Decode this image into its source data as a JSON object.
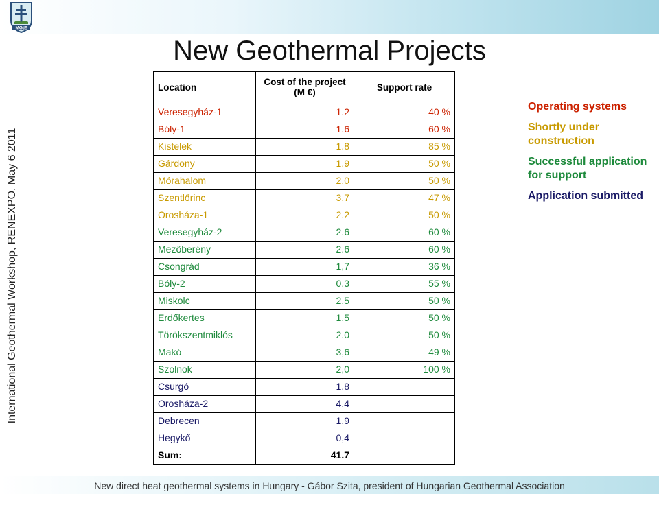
{
  "title": "New Geothermal Projects",
  "sidebar_text": "International Geothermal Workshop, RENEXPO, May 6 2011",
  "footer": "New direct heat geothermal systems in Hungary - Gábor Szita, president of Hungarian Geothermal Association",
  "logo": {
    "text": "MGtE",
    "icon": "double-cross-emblem-icon"
  },
  "colors": {
    "operating": "#cc2200",
    "shortly": "#c89a00",
    "successful": "#1e8a3c",
    "submitted": "#1a1a66",
    "sum": "#000000"
  },
  "table": {
    "headers": {
      "location": "Location",
      "cost": "Cost of the project (M €)",
      "support": "Support rate"
    },
    "rows": [
      {
        "location": "Veresegyház-1",
        "cost": "1.2",
        "support": "40 %",
        "status": "operating"
      },
      {
        "location": "Bóly-1",
        "cost": "1.6",
        "support": "60 %",
        "status": "operating"
      },
      {
        "location": "Kistelek",
        "cost": "1.8",
        "support": "85 %",
        "status": "shortly"
      },
      {
        "location": "Gárdony",
        "cost": "1.9",
        "support": "50 %",
        "status": "shortly"
      },
      {
        "location": "Mórahalom",
        "cost": "2.0",
        "support": "50 %",
        "status": "shortly"
      },
      {
        "location": "Szentlőrinc",
        "cost": "3.7",
        "support": "47 %",
        "status": "shortly"
      },
      {
        "location": "Orosháza-1",
        "cost": "2.2",
        "support": "50 %",
        "status": "shortly"
      },
      {
        "location": "Veresegyház-2",
        "cost": "2.6",
        "support": "60 %",
        "status": "successful"
      },
      {
        "location": "Mezőberény",
        "cost": "2.6",
        "support": "60 %",
        "status": "successful"
      },
      {
        "location": "Csongrád",
        "cost": "1,7",
        "support": "36 %",
        "status": "successful"
      },
      {
        "location": "Bóly-2",
        "cost": "0,3",
        "support": "55 %",
        "status": "successful"
      },
      {
        "location": "Miskolc",
        "cost": "2,5",
        "support": "50 %",
        "status": "successful"
      },
      {
        "location": "Erdőkertes",
        "cost": "1.5",
        "support": "50 %",
        "status": "successful"
      },
      {
        "location": "Törökszentmiklós",
        "cost": "2.0",
        "support": "50 %",
        "status": "successful"
      },
      {
        "location": "Makó",
        "cost": "3,6",
        "support": "49 %",
        "status": "successful"
      },
      {
        "location": "Szolnok",
        "cost": "2,0",
        "support": "100 %",
        "status": "successful"
      },
      {
        "location": "Csurgó",
        "cost": "1.8",
        "support": "",
        "status": "submitted"
      },
      {
        "location": "Orosháza-2",
        "cost": "4,4",
        "support": "",
        "status": "submitted"
      },
      {
        "location": "Debrecen",
        "cost": "1,9",
        "support": "",
        "status": "submitted"
      },
      {
        "location": "Hegykő",
        "cost": "0,4",
        "support": "",
        "status": "submitted"
      },
      {
        "location": "Sum:",
        "cost": "41.7",
        "support": "",
        "status": "sum"
      }
    ]
  },
  "legend": [
    {
      "label": "Operating systems",
      "status": "operating"
    },
    {
      "label": "Shortly under construction",
      "status": "shortly"
    },
    {
      "label": "Successful application for support",
      "status": "successful"
    },
    {
      "label": "Application submitted",
      "status": "submitted"
    }
  ]
}
